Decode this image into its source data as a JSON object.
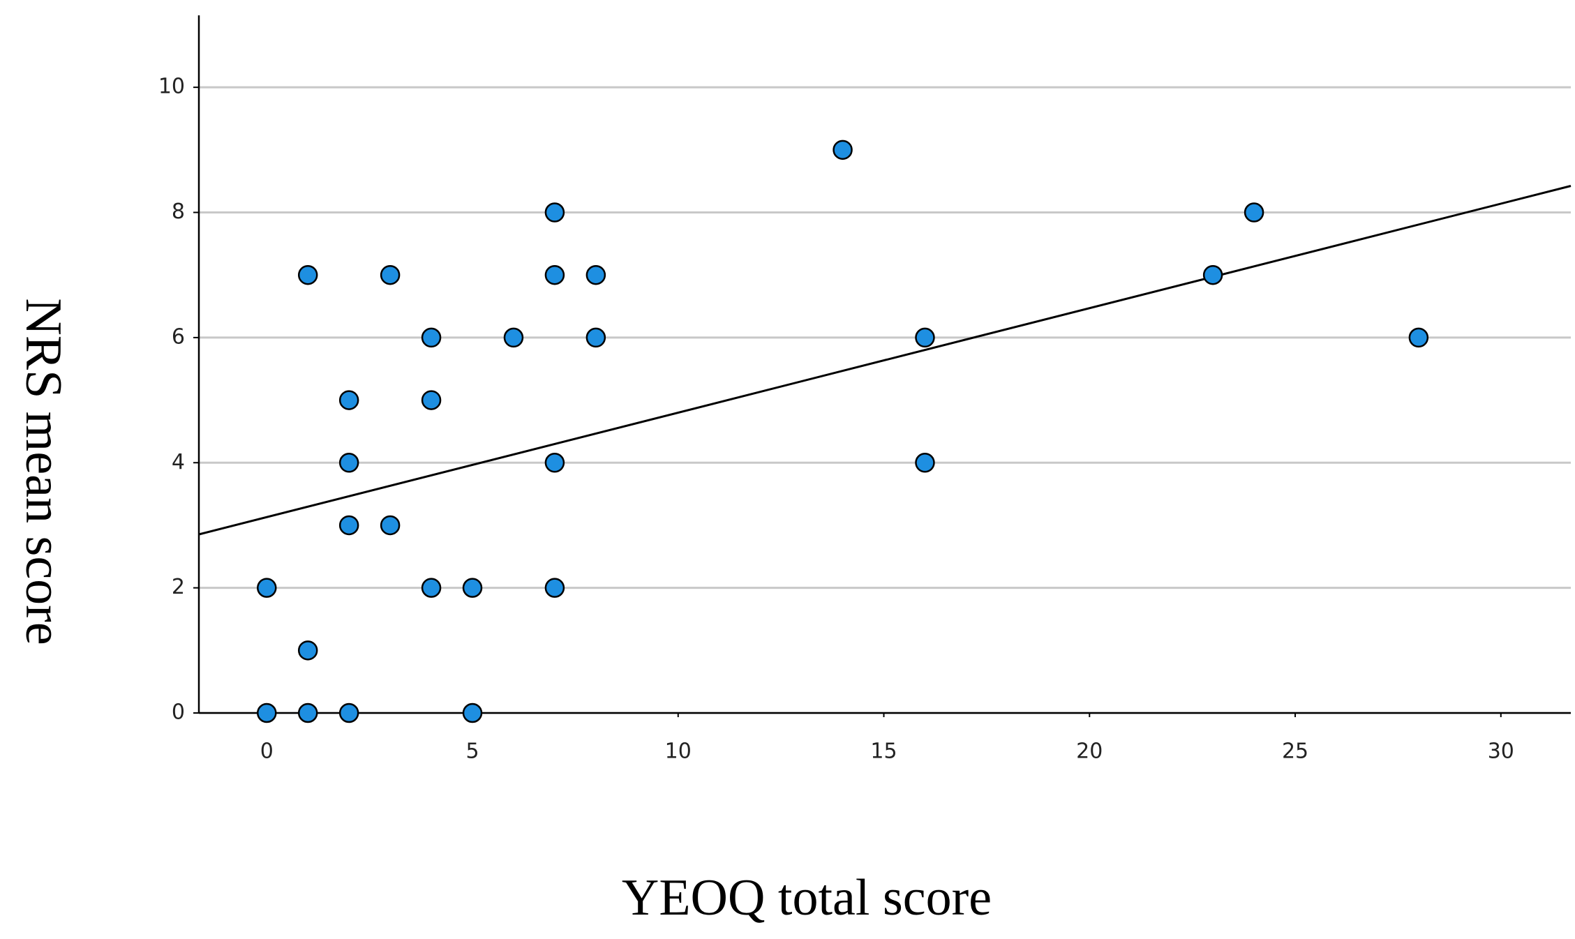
{
  "chart_data": {
    "type": "scatter",
    "x_label": "YEOQ total score",
    "y_label": "NRS mean score",
    "x": [
      0,
      1,
      2,
      5,
      1,
      0,
      4,
      5,
      7,
      2,
      3,
      2,
      7,
      16,
      2,
      4,
      4,
      6,
      8,
      16,
      28,
      1,
      3,
      7,
      8,
      23,
      7,
      24,
      14
    ],
    "values": [
      0,
      0,
      0,
      0,
      1,
      2,
      2,
      2,
      2,
      3,
      3,
      4,
      4,
      4,
      5,
      5,
      6,
      6,
      6,
      6,
      6,
      7,
      7,
      7,
      7,
      7,
      8,
      8,
      9
    ],
    "color": "#1e8fe1",
    "fit": {
      "intercept": 3.13,
      "slope": 0.167
    },
    "xlim": [
      -1.65,
      31.7
    ],
    "ylim": [
      0,
      11.15
    ],
    "xticks": [
      0,
      5,
      10,
      15,
      20,
      25,
      30
    ],
    "yticks": [
      0,
      2,
      4,
      6,
      8,
      10
    ],
    "grid": true
  }
}
